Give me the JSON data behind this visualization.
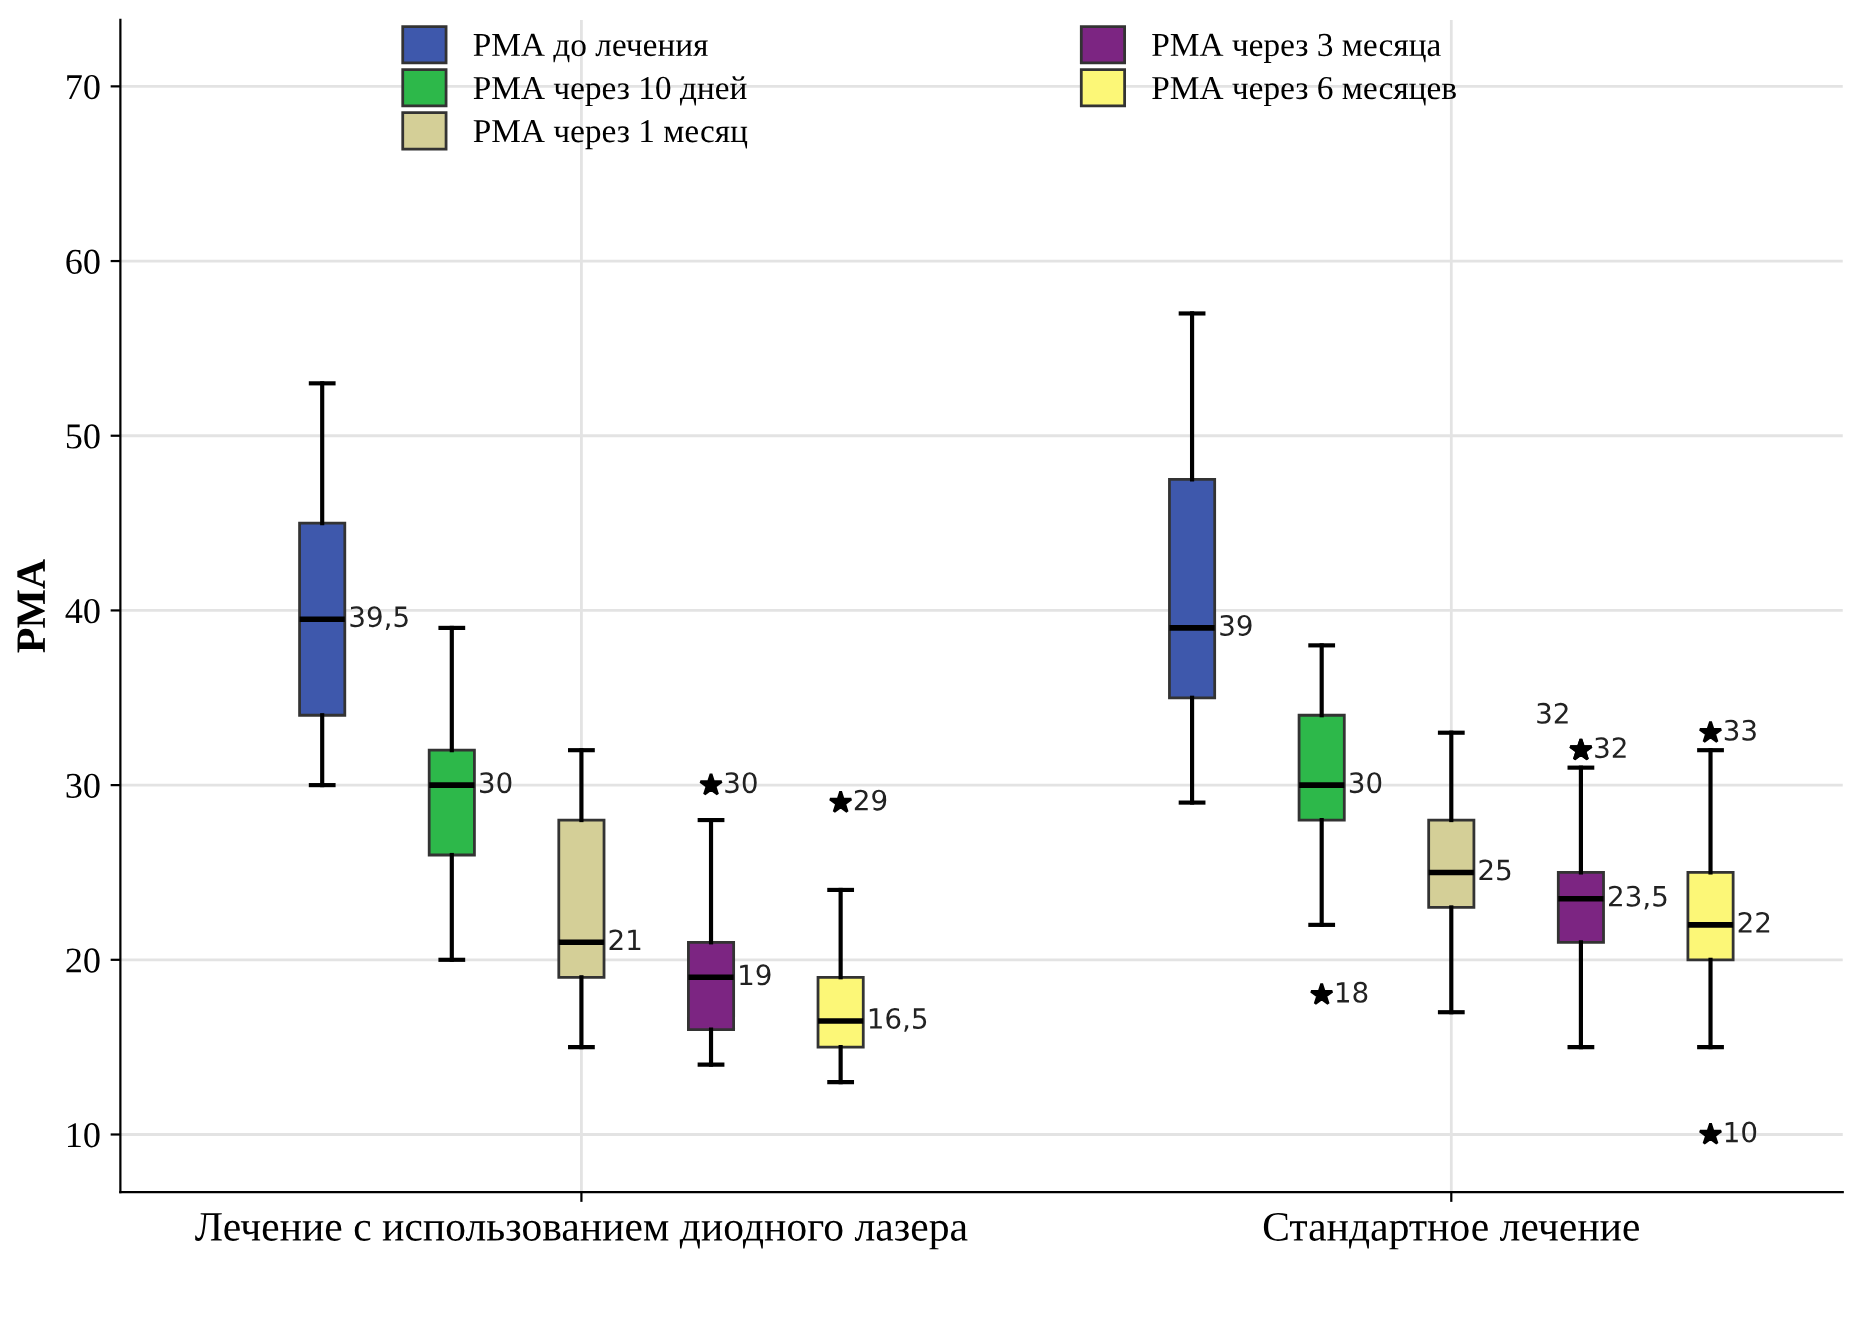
{
  "chart_data": {
    "type": "box",
    "ylabel": "РМА",
    "categories": [
      "Лечение с использованием диодного лазера",
      "Стандартное лечение"
    ],
    "ylim": [
      6.7,
      73.8
    ],
    "yticks": [
      10,
      20,
      30,
      40,
      50,
      60,
      70
    ],
    "grid": true,
    "legend": "top",
    "marker": "star",
    "series": [
      {
        "name": "РМА до лечения",
        "color": "#3e58ac",
        "value_labels": [
          "39,5",
          "39"
        ],
        "boxes": [
          {
            "low": 30,
            "q1": 34,
            "median": 39.5,
            "q3": 45,
            "high": 53
          },
          {
            "low": 29,
            "q1": 35,
            "median": 39,
            "q3": 47.5,
            "high": 57
          }
        ]
      },
      {
        "name": "РМА через 10 дней",
        "color": "#2db84a",
        "value_labels": [
          "30",
          "30"
        ],
        "boxes": [
          {
            "low": 20,
            "q1": 26,
            "median": 30,
            "q3": 32,
            "high": 39
          },
          {
            "low": 22,
            "q1": 28,
            "median": 30,
            "q3": 34,
            "high": 38,
            "outliers": [
              18
            ]
          }
        ]
      },
      {
        "name": "РМА через 1 месяц",
        "color": "#d4cf97",
        "value_labels": [
          "21",
          "25"
        ],
        "boxes": [
          {
            "low": 15,
            "q1": 19,
            "median": 21,
            "q3": 28,
            "high": 32
          },
          {
            "low": 17,
            "q1": 23,
            "median": 25,
            "q3": 28,
            "high": 33
          }
        ]
      },
      {
        "name": "РМА через 3 месяца",
        "color": "#7c2582",
        "value_labels": [
          "19",
          "23,5"
        ],
        "boxes": [
          {
            "low": 14,
            "q1": 16,
            "median": 19,
            "q3": 21,
            "high": 28,
            "outliers": [
              30
            ]
          },
          {
            "low": 15,
            "q1": 21,
            "median": 23.5,
            "q3": 25,
            "high": 31,
            "outliers": [
              32,
              32
            ]
          }
        ]
      },
      {
        "name": "РМА через 6 месяцев",
        "color": "#fcf777",
        "value_labels": [
          "16,5",
          "22"
        ],
        "boxes": [
          {
            "low": 13,
            "q1": 15,
            "median": 16.5,
            "q3": 19,
            "high": 24,
            "outliers": [
              29
            ]
          },
          {
            "low": 15,
            "q1": 20,
            "median": 22,
            "q3": 25,
            "high": 32,
            "outliers": [
              33,
              10
            ]
          }
        ]
      }
    ],
    "annotations": [
      "18",
      "30",
      "32",
      "32",
      "29",
      "33",
      "10"
    ]
  }
}
